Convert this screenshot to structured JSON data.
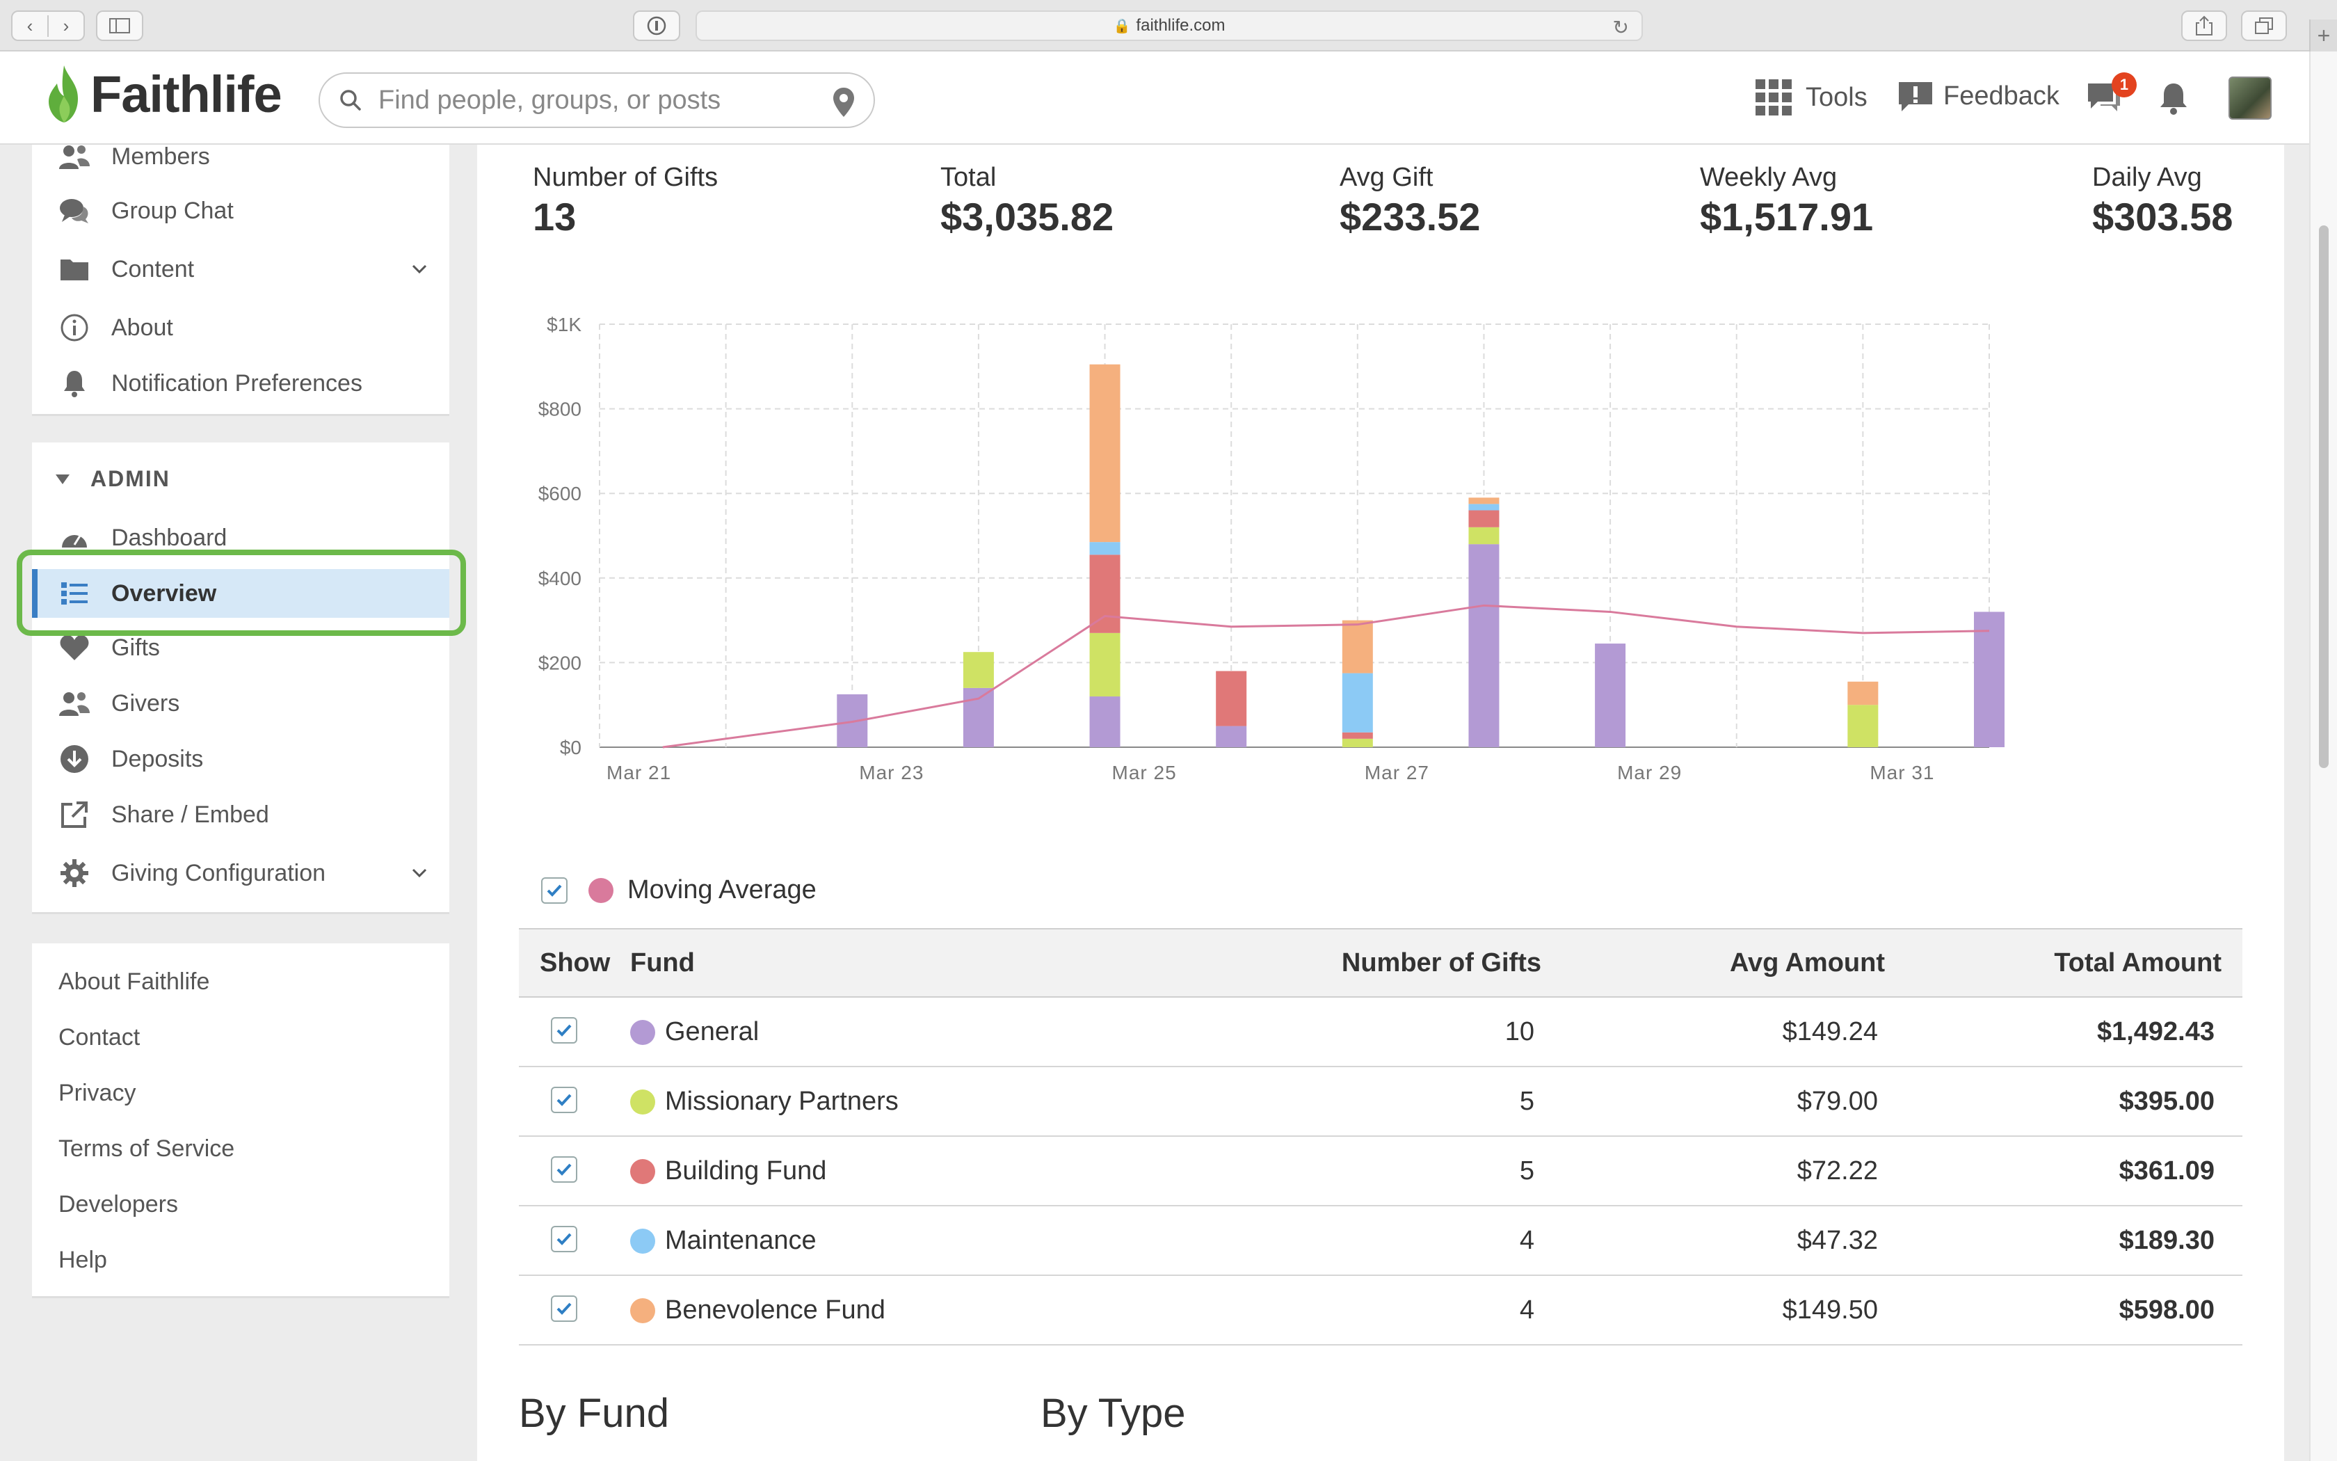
{
  "browser": {
    "url": "faithlife.com"
  },
  "header": {
    "logo": "Faithlife",
    "search_placeholder": "Find people, groups, or posts",
    "tools_label": "Tools",
    "feedback_label": "Feedback",
    "notification_count": "1"
  },
  "sidebar": {
    "group_items": [
      {
        "label": "Members",
        "icon": "members-icon"
      },
      {
        "label": "Group Chat",
        "icon": "chat-icon"
      },
      {
        "label": "Content",
        "icon": "folder-icon"
      },
      {
        "label": "About",
        "icon": "info-icon"
      },
      {
        "label": "Notification Preferences",
        "icon": "bell-icon"
      }
    ],
    "admin_heading": "ADMIN",
    "admin_items": [
      {
        "label": "Dashboard",
        "icon": "dashboard-icon"
      },
      {
        "label": "Overview",
        "icon": "list-icon",
        "active": true
      },
      {
        "label": "Gifts",
        "icon": "heart-icon"
      },
      {
        "label": "Givers",
        "icon": "people-icon"
      },
      {
        "label": "Deposits",
        "icon": "download-icon"
      },
      {
        "label": "Share / Embed",
        "icon": "share-icon"
      },
      {
        "label": "Giving Configuration",
        "icon": "gear-icon"
      }
    ],
    "footer_links": [
      "About Faithlife",
      "Contact",
      "Privacy",
      "Terms of Service",
      "Developers",
      "Help"
    ]
  },
  "stats": [
    {
      "label": "Number of Gifts",
      "value": "13"
    },
    {
      "label": "Total",
      "value": "$3,035.82"
    },
    {
      "label": "Avg Gift",
      "value": "$233.52"
    },
    {
      "label": "Weekly Avg",
      "value": "$1,517.91"
    },
    {
      "label": "Daily Avg",
      "value": "$303.58"
    }
  ],
  "colors": {
    "General": "#b39ad4",
    "Missionary Partners": "#cfe264",
    "Building Fund": "#e07878",
    "Maintenance": "#8ccaf5",
    "Benevolence Fund": "#f5b07e",
    "Moving Average": "#d97a9c"
  },
  "chart_data": {
    "type": "bar",
    "stacked": true,
    "categories": [
      "Mar 21",
      "Mar 22",
      "Mar 23",
      "Mar 24",
      "Mar 25",
      "Mar 26",
      "Mar 27",
      "Mar 28",
      "Mar 29",
      "Mar 30",
      "Mar 31"
    ],
    "x_tick_labels": [
      "Mar 21",
      "Mar 23",
      "Mar 25",
      "Mar 27",
      "Mar 29",
      "Mar 31"
    ],
    "y_tick_labels": [
      "$0",
      "$200",
      "$400",
      "$600",
      "$800",
      "$1K"
    ],
    "ylim": [
      0,
      1000
    ],
    "grid": true,
    "series": [
      {
        "name": "General",
        "values": [
          0,
          125,
          140,
          120,
          50,
          0,
          480,
          245,
          0,
          0,
          320
        ]
      },
      {
        "name": "Missionary Partners",
        "values": [
          0,
          0,
          85,
          150,
          0,
          20,
          40,
          0,
          0,
          100,
          0
        ]
      },
      {
        "name": "Building Fund",
        "values": [
          0,
          0,
          0,
          185,
          130,
          15,
          40,
          0,
          0,
          0,
          0
        ]
      },
      {
        "name": "Maintenance",
        "values": [
          0,
          0,
          0,
          30,
          0,
          140,
          15,
          0,
          0,
          0,
          0
        ]
      },
      {
        "name": "Benevolence Fund",
        "values": [
          0,
          0,
          0,
          420,
          0,
          125,
          15,
          0,
          0,
          55,
          0
        ]
      }
    ],
    "moving_average": {
      "name": "Moving Average",
      "values": [
        0,
        60,
        115,
        310,
        285,
        290,
        335,
        320,
        285,
        270,
        275
      ]
    }
  },
  "legend": {
    "moving_average_label": "Moving Average"
  },
  "table": {
    "headers": [
      "Show",
      "Fund",
      "Number of Gifts",
      "Avg Amount",
      "Total Amount"
    ],
    "rows": [
      {
        "fund": "General",
        "gifts": "10",
        "avg": "$149.24",
        "total": "$1,492.43"
      },
      {
        "fund": "Missionary Partners",
        "gifts": "5",
        "avg": "$79.00",
        "total": "$395.00"
      },
      {
        "fund": "Building Fund",
        "gifts": "5",
        "avg": "$72.22",
        "total": "$361.09"
      },
      {
        "fund": "Maintenance",
        "gifts": "4",
        "avg": "$47.32",
        "total": "$189.30"
      },
      {
        "fund": "Benevolence Fund",
        "gifts": "4",
        "avg": "$149.50",
        "total": "$598.00"
      }
    ]
  },
  "sections": {
    "by_fund": "By Fund",
    "by_type": "By Type"
  }
}
